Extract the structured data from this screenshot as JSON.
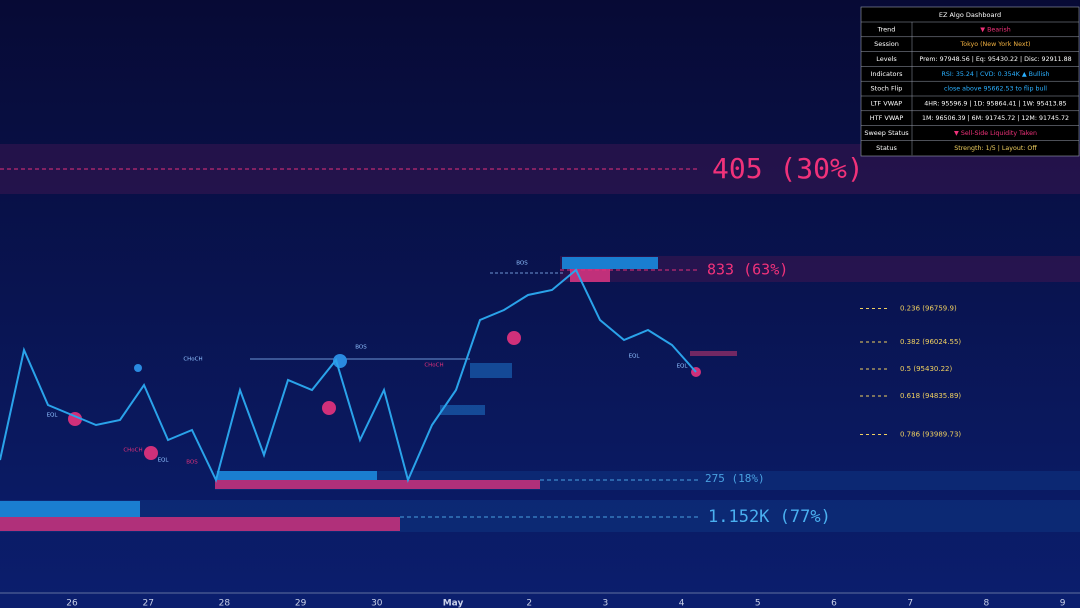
{
  "chart_data": {
    "type": "line",
    "series": [
      {
        "name": "Price",
        "color": "#2aa3ea",
        "values": [
          93428,
          95848,
          94638,
          94418,
          94198,
          94308,
          95078,
          93868,
          94088,
          92988,
          94968,
          93538,
          95188,
          94968,
          95628,
          93868,
          94968,
          92988,
          94198,
          94968,
          96508,
          96728,
          97058,
          97168,
          97608,
          96508,
          96068,
          96288,
          95958,
          95364
        ]
      }
    ],
    "ylim": [
      90502,
      103548
    ],
    "x_labels": [
      "26",
      "27",
      "28",
      "29",
      "30",
      "May",
      "2",
      "3",
      "4",
      "5",
      "6",
      "7",
      "8",
      "9"
    ],
    "fib_levels": [
      {
        "price": 96759.9,
        "label": "0.236 (96759.9)"
      },
      {
        "price": 96024.55,
        "label": "0.382 (96024.55)"
      },
      {
        "price": 95430.22,
        "label": "0.5 (95430.22)"
      },
      {
        "price": 94835.89,
        "label": "0.618 (94835.89)"
      },
      {
        "price": 93989.73,
        "label": "0.786 (93989.73)"
      }
    ],
    "profile_labels": [
      "405 (30%)",
      "833 (63%)",
      "275 (18%)",
      "1.152K (77%)"
    ],
    "annotations": [
      "BOS",
      "CHoCH",
      "BOS",
      "EQL",
      "CHoCH",
      "BOS",
      "EQL",
      "CHoCH",
      "EQL",
      "EQL"
    ],
    "dashboard": {
      "title": "EZ Algo Dashboard",
      "rows": [
        [
          "Trend",
          "▼ Bearish"
        ],
        [
          "Session",
          "Tokyo (New York Next)"
        ],
        [
          "Levels",
          "Prem: 97948.56 | Eq: 95430.22 | Disc: 92911.88"
        ],
        [
          "Indicators",
          "RSI: 35.24 | CVD: 0.354K ▲ Bullish"
        ],
        [
          "Stoch Flip",
          "close above 95662.53 to flip bull"
        ],
        [
          "LTF VWAP",
          "4HR: 95596.9 | 1D: 95864.41 | 1W: 95413.85"
        ],
        [
          "HTF VWAP",
          "1M: 96506.39 | 6M: 91745.72 | 12M: 91745.72"
        ],
        [
          "Sweep Status",
          "▼ Sell-Side Liquidity Taken"
        ],
        [
          "Status",
          "Strength: 1/5 | Layout: Off"
        ]
      ]
    }
  }
}
